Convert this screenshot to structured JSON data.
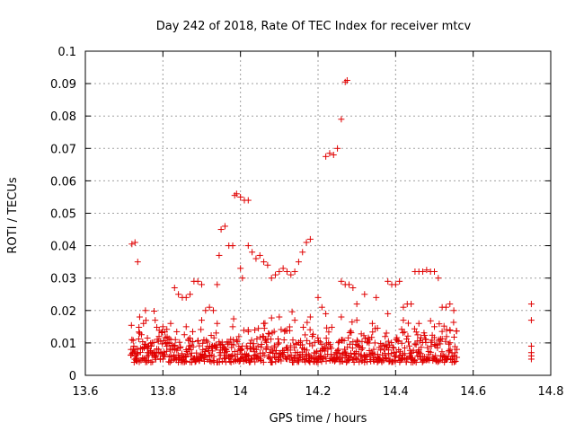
{
  "chart_data": {
    "type": "scatter",
    "title": "Day 242 of 2018, Rate Of TEC Index for receiver mtcv",
    "xlabel": "GPS time / hours",
    "ylabel": "ROTI / TECUs",
    "xlim": [
      13.6,
      14.8
    ],
    "ylim": [
      0,
      0.1
    ],
    "xticks": [
      13.6,
      13.8,
      14.0,
      14.2,
      14.4,
      14.6,
      14.8
    ],
    "xtick_labels": [
      "13.6",
      "13.8",
      "14",
      "14.2",
      "14.4",
      "14.6",
      "14.8"
    ],
    "yticks": [
      0,
      0.01,
      0.02,
      0.03,
      0.04,
      0.05,
      0.06,
      0.07,
      0.08,
      0.09,
      0.1
    ],
    "ytick_labels": [
      "0",
      "0.01",
      "0.02",
      "0.03",
      "0.04",
      "0.05",
      "0.06",
      "0.07",
      "0.08",
      "0.09",
      "0.1"
    ],
    "grid": true,
    "marker": "+",
    "color": "#e00000",
    "series": [
      {
        "name": "ROTI",
        "points": [
          [
            13.72,
            0.0405
          ],
          [
            13.728,
            0.041
          ],
          [
            13.735,
            0.035
          ],
          [
            13.72,
            0.011
          ],
          [
            13.725,
            0.009
          ],
          [
            13.73,
            0.008
          ],
          [
            13.74,
            0.013
          ],
          [
            13.75,
            0.016
          ],
          [
            13.755,
            0.02
          ],
          [
            13.76,
            0.0115
          ],
          [
            13.77,
            0.009
          ],
          [
            13.78,
            0.007
          ],
          [
            13.79,
            0.012
          ],
          [
            13.8,
            0.015
          ],
          [
            13.81,
            0.009
          ],
          [
            13.82,
            0.006
          ],
          [
            13.83,
            0.027
          ],
          [
            13.84,
            0.025
          ],
          [
            13.85,
            0.024
          ],
          [
            13.86,
            0.024
          ],
          [
            13.87,
            0.025
          ],
          [
            13.88,
            0.029
          ],
          [
            13.89,
            0.029
          ],
          [
            13.9,
            0.028
          ],
          [
            13.91,
            0.02
          ],
          [
            13.92,
            0.021
          ],
          [
            13.93,
            0.02
          ],
          [
            13.94,
            0.028
          ],
          [
            13.945,
            0.037
          ],
          [
            13.95,
            0.045
          ],
          [
            13.96,
            0.046
          ],
          [
            13.97,
            0.04
          ],
          [
            13.98,
            0.04
          ],
          [
            13.985,
            0.0555
          ],
          [
            13.99,
            0.056
          ],
          [
            14.0,
            0.055
          ],
          [
            14.01,
            0.054
          ],
          [
            14.02,
            0.054
          ],
          [
            14.0,
            0.033
          ],
          [
            14.005,
            0.03
          ],
          [
            14.02,
            0.04
          ],
          [
            14.03,
            0.038
          ],
          [
            14.04,
            0.036
          ],
          [
            14.05,
            0.037
          ],
          [
            14.06,
            0.035
          ],
          [
            14.07,
            0.034
          ],
          [
            14.08,
            0.03
          ],
          [
            14.09,
            0.031
          ],
          [
            14.1,
            0.032
          ],
          [
            14.11,
            0.033
          ],
          [
            14.12,
            0.032
          ],
          [
            14.13,
            0.031
          ],
          [
            14.14,
            0.032
          ],
          [
            14.15,
            0.035
          ],
          [
            14.16,
            0.038
          ],
          [
            14.17,
            0.041
          ],
          [
            14.18,
            0.042
          ],
          [
            14.2,
            0.024
          ],
          [
            14.21,
            0.021
          ],
          [
            14.22,
            0.0675
          ],
          [
            14.23,
            0.0685
          ],
          [
            14.24,
            0.068
          ],
          [
            14.25,
            0.07
          ],
          [
            14.26,
            0.079
          ],
          [
            14.27,
            0.0905
          ],
          [
            14.275,
            0.091
          ],
          [
            14.26,
            0.029
          ],
          [
            14.27,
            0.028
          ],
          [
            14.28,
            0.028
          ],
          [
            14.29,
            0.027
          ],
          [
            14.3,
            0.022
          ],
          [
            14.32,
            0.025
          ],
          [
            14.35,
            0.024
          ],
          [
            14.38,
            0.029
          ],
          [
            14.39,
            0.028
          ],
          [
            14.4,
            0.028
          ],
          [
            14.41,
            0.029
          ],
          [
            14.42,
            0.021
          ],
          [
            14.43,
            0.022
          ],
          [
            14.44,
            0.022
          ],
          [
            14.45,
            0.032
          ],
          [
            14.46,
            0.032
          ],
          [
            14.47,
            0.032
          ],
          [
            14.48,
            0.0325
          ],
          [
            14.49,
            0.032
          ],
          [
            14.5,
            0.032
          ],
          [
            14.51,
            0.03
          ],
          [
            14.52,
            0.021
          ],
          [
            14.53,
            0.021
          ],
          [
            14.54,
            0.022
          ],
          [
            14.55,
            0.02
          ],
          [
            13.73,
            0.006
          ],
          [
            13.76,
            0.007
          ],
          [
            13.8,
            0.005
          ],
          [
            13.84,
            0.004
          ],
          [
            13.88,
            0.005
          ],
          [
            13.92,
            0.006
          ],
          [
            13.96,
            0.007
          ],
          [
            14.0,
            0.005
          ],
          [
            14.04,
            0.006
          ],
          [
            14.08,
            0.004
          ],
          [
            14.12,
            0.005
          ],
          [
            14.16,
            0.006
          ],
          [
            14.2,
            0.004
          ],
          [
            14.24,
            0.005
          ],
          [
            14.28,
            0.006
          ],
          [
            14.32,
            0.004
          ],
          [
            14.36,
            0.005
          ],
          [
            14.4,
            0.006
          ],
          [
            14.44,
            0.004
          ],
          [
            14.48,
            0.005
          ],
          [
            14.52,
            0.006
          ],
          [
            14.55,
            0.006
          ],
          [
            13.74,
            0.018
          ],
          [
            13.78,
            0.017
          ],
          [
            13.82,
            0.016
          ],
          [
            13.86,
            0.015
          ],
          [
            13.9,
            0.017
          ],
          [
            13.94,
            0.016
          ],
          [
            13.98,
            0.015
          ],
          [
            14.02,
            0.014
          ],
          [
            14.06,
            0.016
          ],
          [
            14.1,
            0.018
          ],
          [
            14.14,
            0.017
          ],
          [
            14.18,
            0.018
          ],
          [
            14.22,
            0.019
          ],
          [
            14.26,
            0.018
          ],
          [
            14.3,
            0.017
          ],
          [
            14.34,
            0.016
          ],
          [
            14.38,
            0.019
          ],
          [
            14.42,
            0.017
          ],
          [
            14.46,
            0.016
          ],
          [
            14.5,
            0.015
          ],
          [
            14.54,
            0.014
          ],
          [
            14.75,
            0.022
          ],
          [
            14.75,
            0.017
          ],
          [
            14.75,
            0.009
          ],
          [
            14.75,
            0.007
          ],
          [
            14.75,
            0.006
          ],
          [
            14.75,
            0.005
          ]
        ]
      }
    ]
  }
}
